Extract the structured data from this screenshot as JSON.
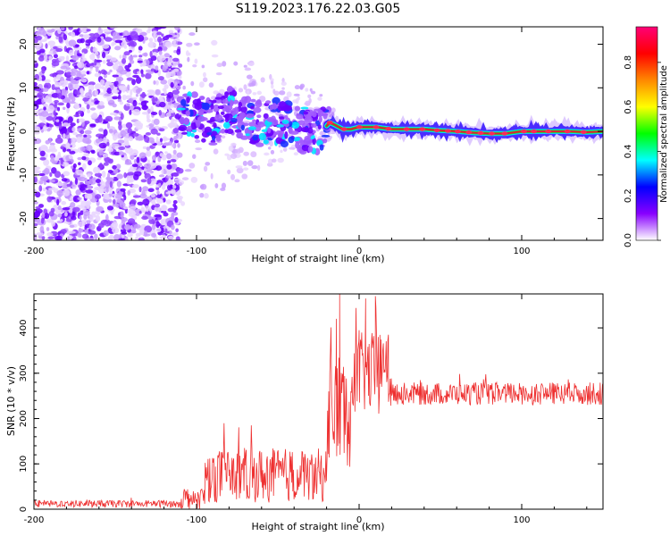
{
  "figure": {
    "title": "S119.2023.176.22.03.G05"
  },
  "colors": {
    "snr_line": "#ee3030",
    "axis": "#000000",
    "trace_core": "#dd1f3a"
  },
  "chart_data": [
    {
      "type": "heatmap",
      "xlabel": "Height of straight line (km)",
      "ylabel": "Frequency (Hz)",
      "xlim": [
        -200,
        150
      ],
      "ylim": [
        -25,
        24
      ],
      "xticks": [
        -200,
        -100,
        0,
        100
      ],
      "yticks": [
        -20,
        -10,
        0,
        10,
        20
      ],
      "colorbar": {
        "label": "Normalized spectral amplitude",
        "ticks": [
          "0.0",
          "0.2",
          "0.4",
          "0.6",
          "0.8"
        ],
        "range": [
          0,
          0.96
        ],
        "colormap": [
          "#ffffff",
          "#8800ff",
          "#0000ff",
          "#00ffff",
          "#00ff00",
          "#ffff00",
          "#ff8800",
          "#ff0000",
          "#ff0077"
        ]
      },
      "regions": [
        {
          "name": "noise",
          "x_range": [
            -200,
            -110
          ],
          "y_range": [
            -25,
            24
          ],
          "amplitude": 0.1
        },
        {
          "name": "transition",
          "x_range": [
            -110,
            -20
          ],
          "amplitude": 0.3
        },
        {
          "name": "signal",
          "x_range": [
            -20,
            150
          ],
          "amplitude": 0.95
        }
      ],
      "trace": {
        "x": [
          -110,
          -100,
          -90,
          -80,
          -70,
          -60,
          -50,
          -40,
          -30,
          -22,
          -18,
          -15,
          -10,
          -5,
          0,
          10,
          20,
          30,
          40,
          50,
          60,
          70,
          80,
          90,
          100,
          110,
          120,
          130,
          140,
          150
        ],
        "y": [
          4,
          3.5,
          2,
          5,
          3,
          1.5,
          2.5,
          1,
          0,
          0.5,
          2,
          1.5,
          0.5,
          0.5,
          1,
          1,
          0.5,
          0.5,
          0.5,
          0.2,
          0,
          -0.3,
          -0.5,
          -0.5,
          0,
          0,
          0,
          0,
          -0.2,
          0
        ]
      }
    },
    {
      "type": "line",
      "xlabel": "Height of straight line (km)",
      "ylabel": "SNR (10 * v/v)",
      "xlim": [
        -200,
        150
      ],
      "ylim": [
        0,
        475
      ],
      "xticks": [
        -200,
        -100,
        0,
        100
      ],
      "yticks": [
        0,
        100,
        200,
        300,
        400
      ],
      "series": [
        {
          "values_envelope": [
            {
              "x_range": [
                -200,
                -110
              ],
              "mean": 12,
              "spread": 8
            },
            {
              "x_range": [
                -110,
                -95
              ],
              "mean": 25,
              "spread": 25
            },
            {
              "x_range": [
                -95,
                -20
              ],
              "mean": 75,
              "spread": 60
            },
            {
              "x_range": [
                -20,
                -5
              ],
              "mean": 220,
              "spread": 130
            },
            {
              "x_range": [
                -5,
                20
              ],
              "mean": 300,
              "spread": 90
            },
            {
              "x_range": [
                20,
                150
              ],
              "mean": 255,
              "spread": 25
            }
          ],
          "peaks": [
            {
              "x": -12,
              "y": 475
            },
            {
              "x": 4,
              "y": 465
            },
            {
              "x": 10,
              "y": 470
            },
            {
              "x": -14,
              "y": 420
            },
            {
              "x": 0,
              "y": 395
            },
            {
              "x": 18,
              "y": 385
            }
          ]
        }
      ]
    }
  ]
}
